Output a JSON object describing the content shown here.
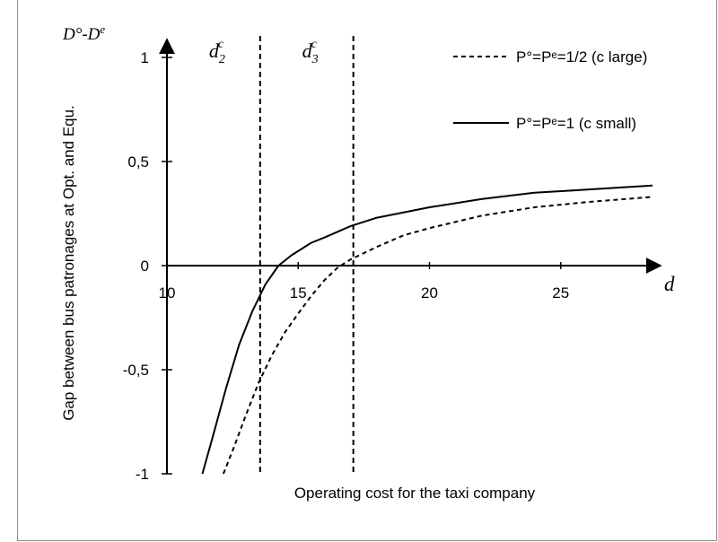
{
  "chart_data": {
    "type": "line",
    "xlabel": "Operating cost for the taxi company",
    "ylabel": "Gap between bus patronages at Opt. and Equ.",
    "xlim": [
      10,
      28.5
    ],
    "ylim": [
      -1,
      1.1
    ],
    "x_ticks": [
      "10",
      "15",
      "20",
      "25"
    ],
    "y_ticks": [
      "1",
      "0,5",
      "0",
      "-0,5",
      "-1"
    ],
    "y_axis_title": {
      "base": "D°-D",
      "sup": "e"
    },
    "x_axis_end_label": "d",
    "grid": false,
    "legend_position": "top-right",
    "vertical_lines": [
      {
        "x": 13.55,
        "label_base": "d",
        "label_sub": "2",
        "label_sup": "c"
      },
      {
        "x": 17.1,
        "label_base": "d",
        "label_sub": "3",
        "label_sup": "c"
      }
    ],
    "series": [
      {
        "name": "P°=Pᵉ=1/2  (c large)",
        "style": "dashed",
        "x": [
          12.15,
          12.5,
          13,
          13.5,
          14,
          14.5,
          15,
          15.5,
          16,
          16.5,
          17,
          18,
          19,
          20,
          22,
          24,
          26,
          28.5
        ],
        "y": [
          -1.0,
          -0.89,
          -0.72,
          -0.56,
          -0.43,
          -0.32,
          -0.23,
          -0.145,
          -0.07,
          -0.01,
          0.03,
          0.09,
          0.145,
          0.18,
          0.24,
          0.28,
          0.305,
          0.33
        ]
      },
      {
        "name": "P°=Pᵉ=1  (c small)",
        "style": "solid",
        "x": [
          11.35,
          11.75,
          12.25,
          12.75,
          13.25,
          13.75,
          14.25,
          14.75,
          15.5,
          16,
          17,
          18,
          20,
          22,
          24,
          26,
          28.5
        ],
        "y": [
          -1.0,
          -0.82,
          -0.59,
          -0.38,
          -0.22,
          -0.09,
          0.0,
          0.05,
          0.11,
          0.135,
          0.19,
          0.23,
          0.28,
          0.32,
          0.35,
          0.365,
          0.385
        ]
      }
    ]
  }
}
